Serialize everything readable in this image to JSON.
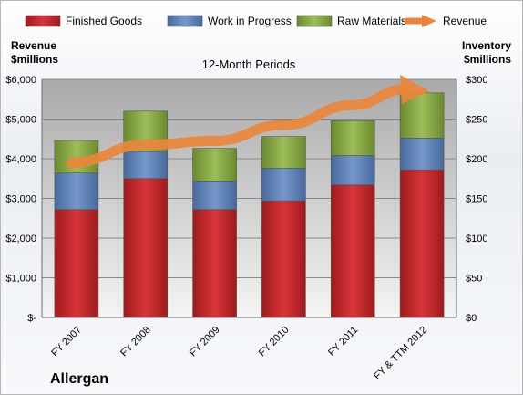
{
  "chart_data": {
    "type": "bar",
    "stacked": true,
    "title": "12-Month Periods",
    "company": "Allergan",
    "categories": [
      "FY 2007",
      "FY 2008",
      "FY 2009",
      "FY 2010",
      "FY 2011",
      "FY & TTM 2012"
    ],
    "series": [
      {
        "name": "Finished Goods",
        "axis": "right",
        "color": "#c0292c",
        "values": [
          136,
          175,
          136,
          147,
          167,
          186
        ]
      },
      {
        "name": "Work in Progress",
        "axis": "right",
        "color": "#5b7fb3",
        "values": [
          46,
          34,
          36,
          41,
          37,
          40
        ]
      },
      {
        "name": "Raw Materials",
        "axis": "right",
        "color": "#86a844",
        "values": [
          41,
          51,
          41,
          40,
          44,
          57
        ]
      },
      {
        "name": "Revenue",
        "axis": "left",
        "type": "line",
        "color": "#e9853a",
        "values": [
          3900,
          4350,
          4450,
          4850,
          5350,
          5750
        ]
      }
    ],
    "ylabel_left": "Revenue\n$millions",
    "ylabel_right": "Inventory\n$millions",
    "ylim_left": [
      0,
      6000
    ],
    "ylim_right": [
      0,
      300
    ],
    "yticks_left": [
      "$-",
      "$1,000",
      "$2,000",
      "$3,000",
      "$4,000",
      "$5,000",
      "$6,000"
    ],
    "yticks_right": [
      "$0",
      "$50",
      "$100",
      "$150",
      "$200",
      "$250",
      "$300"
    ],
    "legend_position": "top",
    "grid": true
  }
}
